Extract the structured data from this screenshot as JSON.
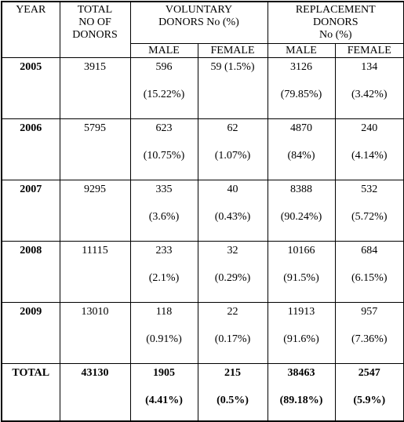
{
  "header": {
    "year": "YEAR",
    "total": [
      "TOTAL",
      "NO OF",
      "DONORS"
    ],
    "voluntary": [
      "VOLUNTARY",
      "DONORS No (%)"
    ],
    "replacement": [
      "REPLACEMENT",
      "DONORS",
      "No (%)"
    ],
    "sub": [
      "MALE",
      "FEMALE",
      "MALE",
      "FEMALE"
    ]
  },
  "rows": [
    {
      "year": "2005",
      "total": "3915",
      "cells": [
        [
          "596",
          "(15.22%)"
        ],
        [
          "59 (1.5%)"
        ],
        [
          "3126",
          "(79.85%)"
        ],
        [
          "134",
          "(3.42%)"
        ]
      ]
    },
    {
      "year": "2006",
      "total": "5795",
      "cells": [
        [
          "623",
          "(10.75%)"
        ],
        [
          "62",
          "(1.07%)"
        ],
        [
          "4870",
          "(84%)"
        ],
        [
          "240",
          "(4.14%)"
        ]
      ]
    },
    {
      "year": "2007",
      "total": "9295",
      "cells": [
        [
          "335",
          "(3.6%)"
        ],
        [
          "40",
          "(0.43%)"
        ],
        [
          "8388",
          "(90.24%)"
        ],
        [
          "532",
          "(5.72%)"
        ]
      ]
    },
    {
      "year": "2008",
      "total": "11115",
      "cells": [
        [
          "233",
          "(2.1%)"
        ],
        [
          "32",
          "(0.29%)"
        ],
        [
          "10166",
          "(91.5%)"
        ],
        [
          "684",
          "(6.15%)"
        ]
      ]
    },
    {
      "year": "2009",
      "total": "13010",
      "cells": [
        [
          "118",
          "(0.91%)"
        ],
        [
          "22",
          "(0.17%)"
        ],
        [
          "11913",
          "(91.6%)"
        ],
        [
          "957",
          "(7.36%)"
        ]
      ]
    }
  ],
  "total_row": {
    "year": "TOTAL",
    "total": "43130",
    "cells": [
      [
        "1905",
        "(4.41%)"
      ],
      [
        "215",
        "(0.5%)"
      ],
      [
        "38463",
        "(89.18%)"
      ],
      [
        "2547",
        "(5.9%)"
      ]
    ]
  }
}
